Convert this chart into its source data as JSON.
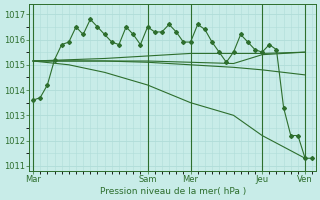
{
  "bg_color": "#c8ece8",
  "grid_color": "#b0dcd8",
  "line_color": "#2d6e2d",
  "xlabel": "Pression niveau de la mer( hPa )",
  "ylim": [
    1010.8,
    1017.4
  ],
  "yticks": [
    1011,
    1012,
    1013,
    1014,
    1015,
    1016,
    1017
  ],
  "day_labels": [
    "Mar",
    "Sam",
    "Mer",
    "Jeu",
    "Ven"
  ],
  "day_positions": [
    0,
    16,
    22,
    32,
    38
  ],
  "xlim": [
    -0.5,
    39.5
  ],
  "series_main": {
    "x": [
      0,
      1,
      2,
      3,
      4,
      5,
      6,
      7,
      8,
      9,
      10,
      11,
      12,
      13,
      14,
      15,
      16,
      17,
      18,
      19,
      20,
      21,
      22,
      23,
      24,
      25,
      26,
      27,
      28,
      29,
      30,
      31,
      32,
      33,
      34,
      35,
      36,
      37,
      38,
      39
    ],
    "y": [
      1013.6,
      1013.7,
      1014.2,
      1015.2,
      1015.8,
      1015.9,
      1016.5,
      1016.2,
      1016.8,
      1016.5,
      1016.2,
      1015.9,
      1015.8,
      1016.5,
      1016.2,
      1015.8,
      1016.5,
      1016.3,
      1016.3,
      1016.6,
      1016.3,
      1015.9,
      1015.9,
      1016.6,
      1016.4,
      1015.9,
      1015.5,
      1015.1,
      1015.5,
      1016.2,
      1015.9,
      1015.6,
      1015.5,
      1015.8,
      1015.6,
      1013.3,
      1012.2,
      1012.2,
      1011.3,
      1011.3
    ]
  },
  "series_smooth": [
    {
      "x": [
        0,
        5,
        10,
        16,
        22,
        28,
        32,
        38
      ],
      "y": [
        1015.15,
        1015.15,
        1015.15,
        1015.15,
        1015.1,
        1015.05,
        1015.4,
        1015.5
      ]
    },
    {
      "x": [
        0,
        5,
        10,
        16,
        22,
        28,
        32,
        38
      ],
      "y": [
        1015.15,
        1015.2,
        1015.25,
        1015.35,
        1015.45,
        1015.45,
        1015.45,
        1015.5
      ]
    },
    {
      "x": [
        0,
        5,
        10,
        16,
        22,
        28,
        32,
        38
      ],
      "y": [
        1015.15,
        1015.15,
        1015.15,
        1015.1,
        1015.0,
        1014.9,
        1014.8,
        1014.6
      ]
    },
    {
      "x": [
        0,
        5,
        10,
        16,
        22,
        28,
        32,
        38
      ],
      "y": [
        1015.15,
        1015.0,
        1014.7,
        1014.2,
        1013.5,
        1013.0,
        1012.2,
        1011.3
      ]
    }
  ]
}
